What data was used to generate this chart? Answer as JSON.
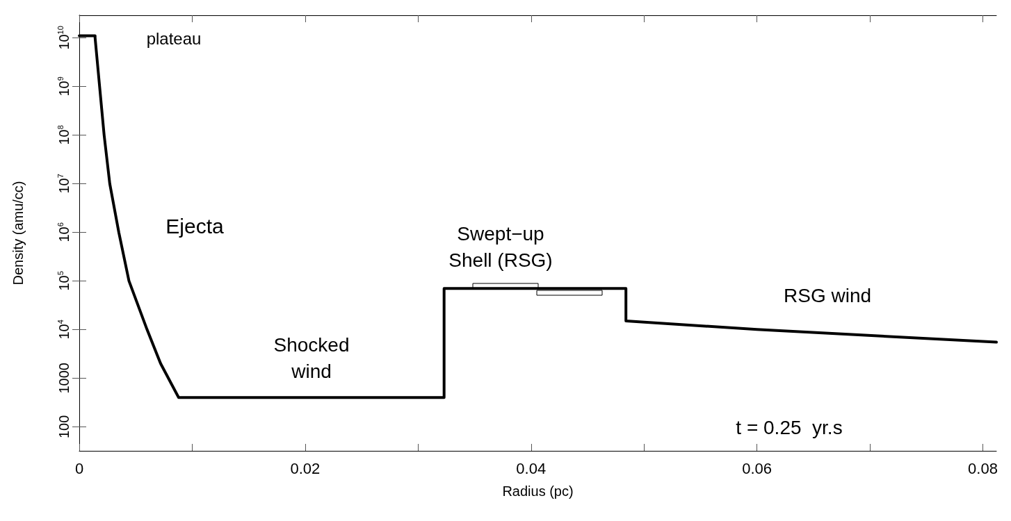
{
  "chart_data": {
    "type": "line",
    "xlabel": "Radius (pc)",
    "ylabel": "Density (amu/cc)",
    "log": "y",
    "grid": false,
    "marker": "none",
    "line_style": "solid",
    "xlim": [
      0,
      0.0812
    ],
    "xticks": [
      0,
      {
        "value": 0.01,
        "label": null
      },
      0.02,
      {
        "value": 0.03,
        "label": null
      },
      0.04,
      {
        "value": 0.05,
        "label": null
      },
      0.06,
      {
        "value": 0.07,
        "label": null
      },
      0.08
    ],
    "ylim": [
      32,
      29000000000
    ],
    "yticks": [
      100,
      1000,
      {
        "value": 10000,
        "label": "10$^{4}$"
      },
      {
        "value": 100000,
        "label": "10$^{5}$"
      },
      {
        "value": 1000000,
        "label": "10$^{6}$"
      },
      {
        "value": 10000000,
        "label": "10$^{7}$"
      },
      {
        "value": 100000000,
        "label": "10$^{8}$"
      },
      {
        "value": 1000000000,
        "label": "10$^{9}$"
      },
      {
        "value": 10000000000,
        "label": "10$^{10}$"
      }
    ],
    "series": [
      {
        "color": "#000000",
        "x": [
          0,
          0.0014,
          0.0014,
          0.0018,
          0.0022,
          0.0027,
          0.0035,
          0.0044,
          0.006,
          0.0072,
          0.0088,
          0.0323,
          0.0323,
          0.0484,
          0.0484,
          0.06,
          0.0812
        ],
        "values": [
          11000000000,
          11000000000,
          10000000000,
          1000000000,
          100000000,
          10000000,
          1000000,
          100000,
          10000,
          2000,
          400,
          400,
          70000,
          70000,
          15000,
          10000,
          5500
        ]
      }
    ],
    "annotations": [
      "plateau",
      "Ejecta",
      "Shocked\nwind",
      "Swept−up\nShell (RSG)",
      "RSG wind",
      "t = 0.25  yr.s"
    ]
  }
}
